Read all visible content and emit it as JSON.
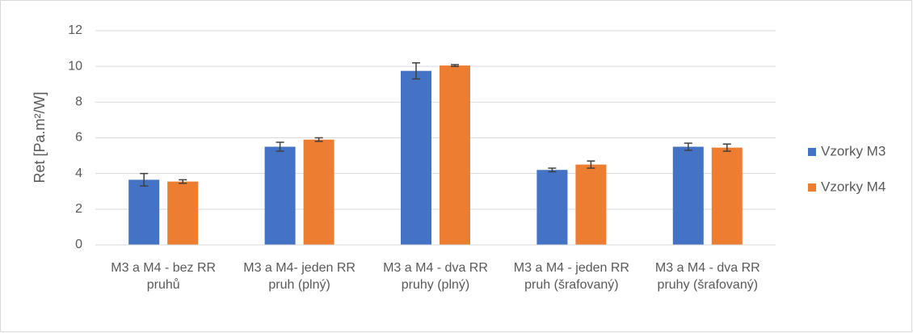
{
  "chart_data": {
    "type": "bar",
    "y_label": "Ret [Pa.m²/W]",
    "categories": [
      "M3 a M4 - bez RR pruhů",
      "M3 a M4- jeden RR pruh (plný)",
      "M3 a M4 - dva RR pruhy (plný)",
      "M3 a M4 - jeden RR pruh (šrafovaný)",
      "M3 a M4 - dva RR pruhy (šrafovaný)"
    ],
    "series": [
      {
        "name": "Vzorky M3",
        "color": "#4472c4",
        "values": [
          3.65,
          5.5,
          9.75,
          4.2,
          5.5
        ],
        "errors": [
          0.35,
          0.25,
          0.45,
          0.1,
          0.2
        ]
      },
      {
        "name": "Vzorky M4",
        "color": "#ed7d31",
        "values": [
          3.55,
          5.9,
          10.05,
          4.5,
          5.45
        ],
        "errors": [
          0.1,
          0.1,
          0.05,
          0.2,
          0.2
        ]
      }
    ],
    "ylim": [
      0,
      12
    ],
    "yticks": [
      0,
      2,
      4,
      6,
      8,
      10,
      12
    ],
    "grid": true,
    "legend": "right"
  }
}
